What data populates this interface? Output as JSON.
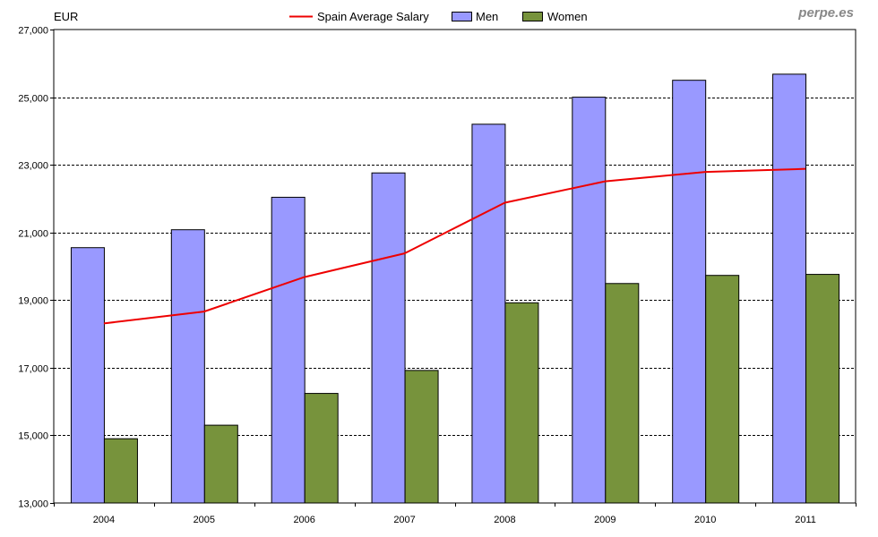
{
  "chart_data": {
    "type": "bar",
    "y_unit_label": "EUR",
    "watermark": "perpe.es",
    "categories": [
      "2004",
      "2005",
      "2006",
      "2007",
      "2008",
      "2009",
      "2010",
      "2011"
    ],
    "series": [
      {
        "name": "Men",
        "kind": "bar",
        "color": "#9999ff",
        "values": [
          20550,
          21080,
          22040,
          22760,
          24200,
          25000,
          25500,
          25680
        ]
      },
      {
        "name": "Women",
        "kind": "bar",
        "color": "#77933c",
        "values": [
          14900,
          15300,
          16240,
          16920,
          18920,
          19490,
          19730,
          19760
        ]
      }
    ],
    "line_series": {
      "name": "Spain Average Salary",
      "kind": "line",
      "color": "#ee0000",
      "values": [
        18310,
        18660,
        19680,
        20380,
        21880,
        22510,
        22790,
        22880
      ]
    },
    "ylim": [
      13000,
      27000
    ],
    "yticks": [
      13000,
      15000,
      17000,
      19000,
      21000,
      23000,
      25000,
      27000
    ],
    "ytick_labels": [
      "13,000",
      "15,000",
      "17,000",
      "19,000",
      "21,000",
      "23,000",
      "25,000",
      "27,000"
    ],
    "grid": true,
    "legend_position": "top-center",
    "legend": [
      {
        "name": "Spain Average Salary",
        "kind": "line",
        "color": "#ee0000"
      },
      {
        "name": "Men",
        "kind": "bar",
        "color": "#9999ff"
      },
      {
        "name": "Women",
        "kind": "bar",
        "color": "#77933c"
      }
    ]
  }
}
